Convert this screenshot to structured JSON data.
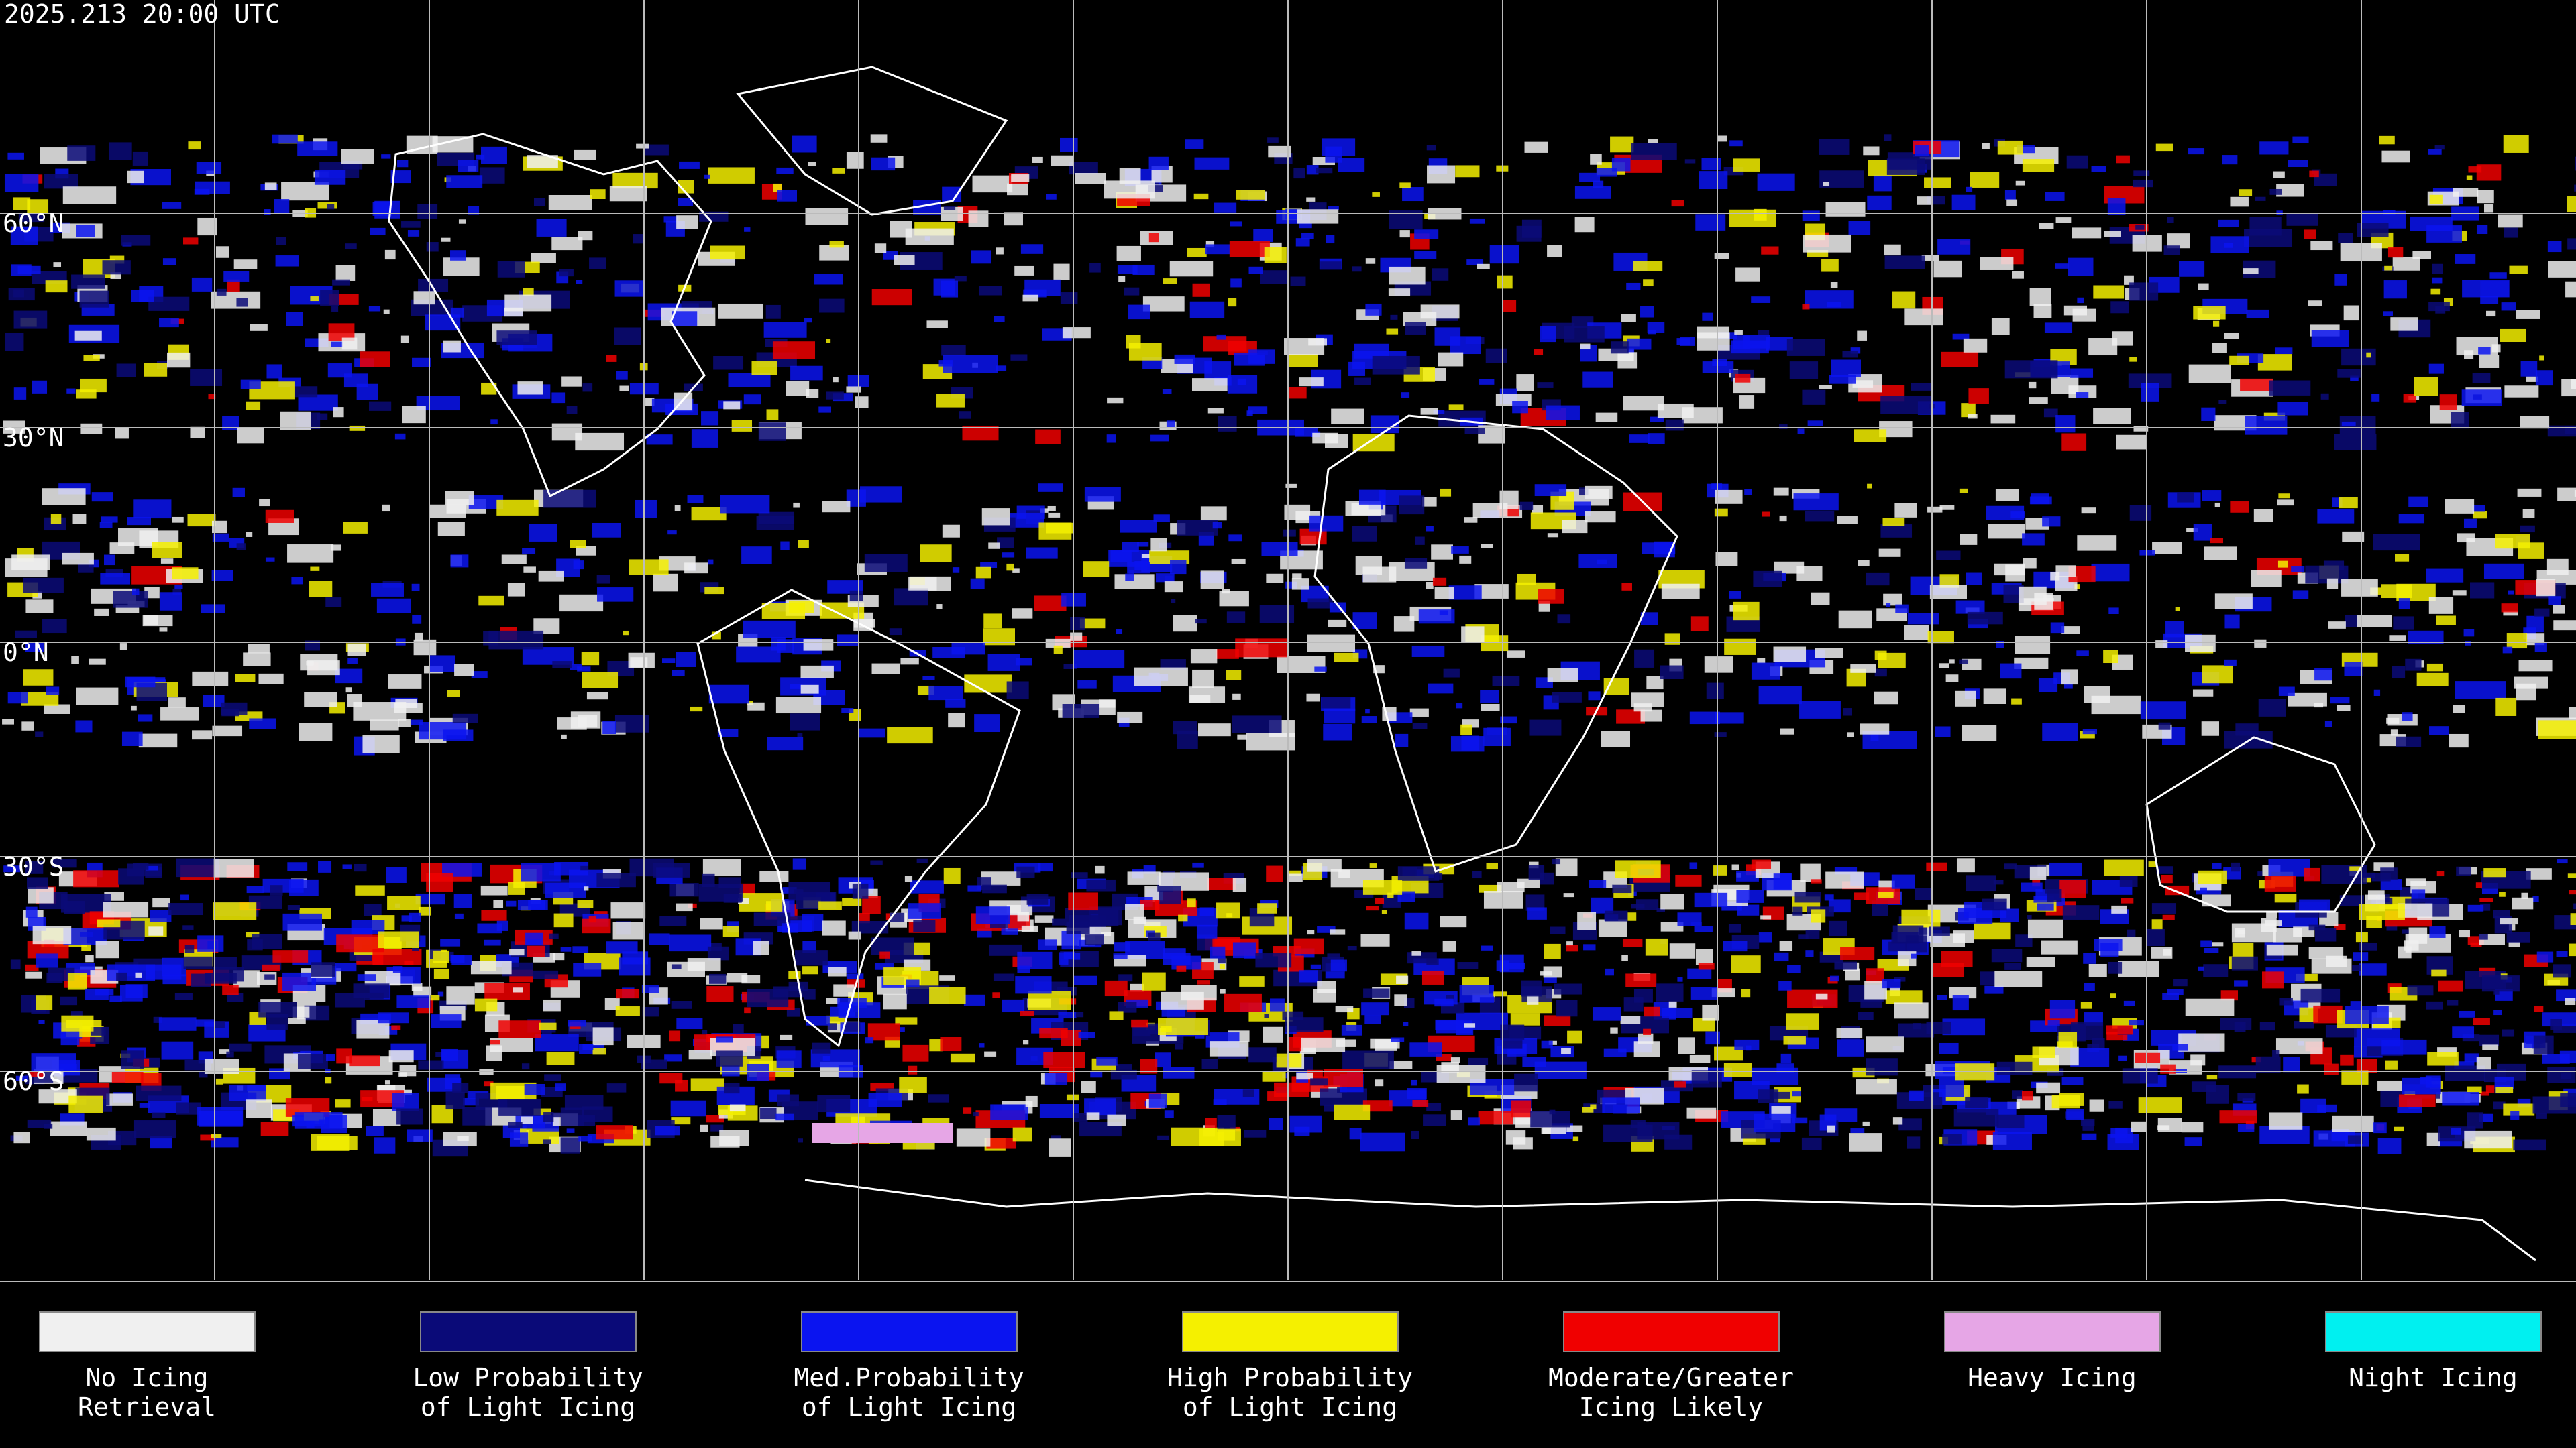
{
  "timestamp": "2025.213 20:00 UTC",
  "lat_labels": [
    "60°N",
    "30°N",
    "0°N",
    "30°S",
    "60°S"
  ],
  "legend": [
    {
      "lines": [
        "No Icing",
        "Retrieval"
      ],
      "color": "#f0f0f0"
    },
    {
      "lines": [
        "Low Probability",
        "of Light Icing"
      ],
      "color": "#0a0a78"
    },
    {
      "lines": [
        "Med.Probability",
        "of Light Icing"
      ],
      "color": "#0a14f0"
    },
    {
      "lines": [
        "High Probability",
        "of Light Icing"
      ],
      "color": "#f5f000"
    },
    {
      "lines": [
        "Moderate/Greater",
        "Icing Likely"
      ],
      "color": "#f00000"
    },
    {
      "lines": [
        "Heavy Icing"
      ],
      "color": "#e6a6e6"
    },
    {
      "lines": [
        "Night Icing"
      ],
      "color": "#00f0f0"
    }
  ]
}
